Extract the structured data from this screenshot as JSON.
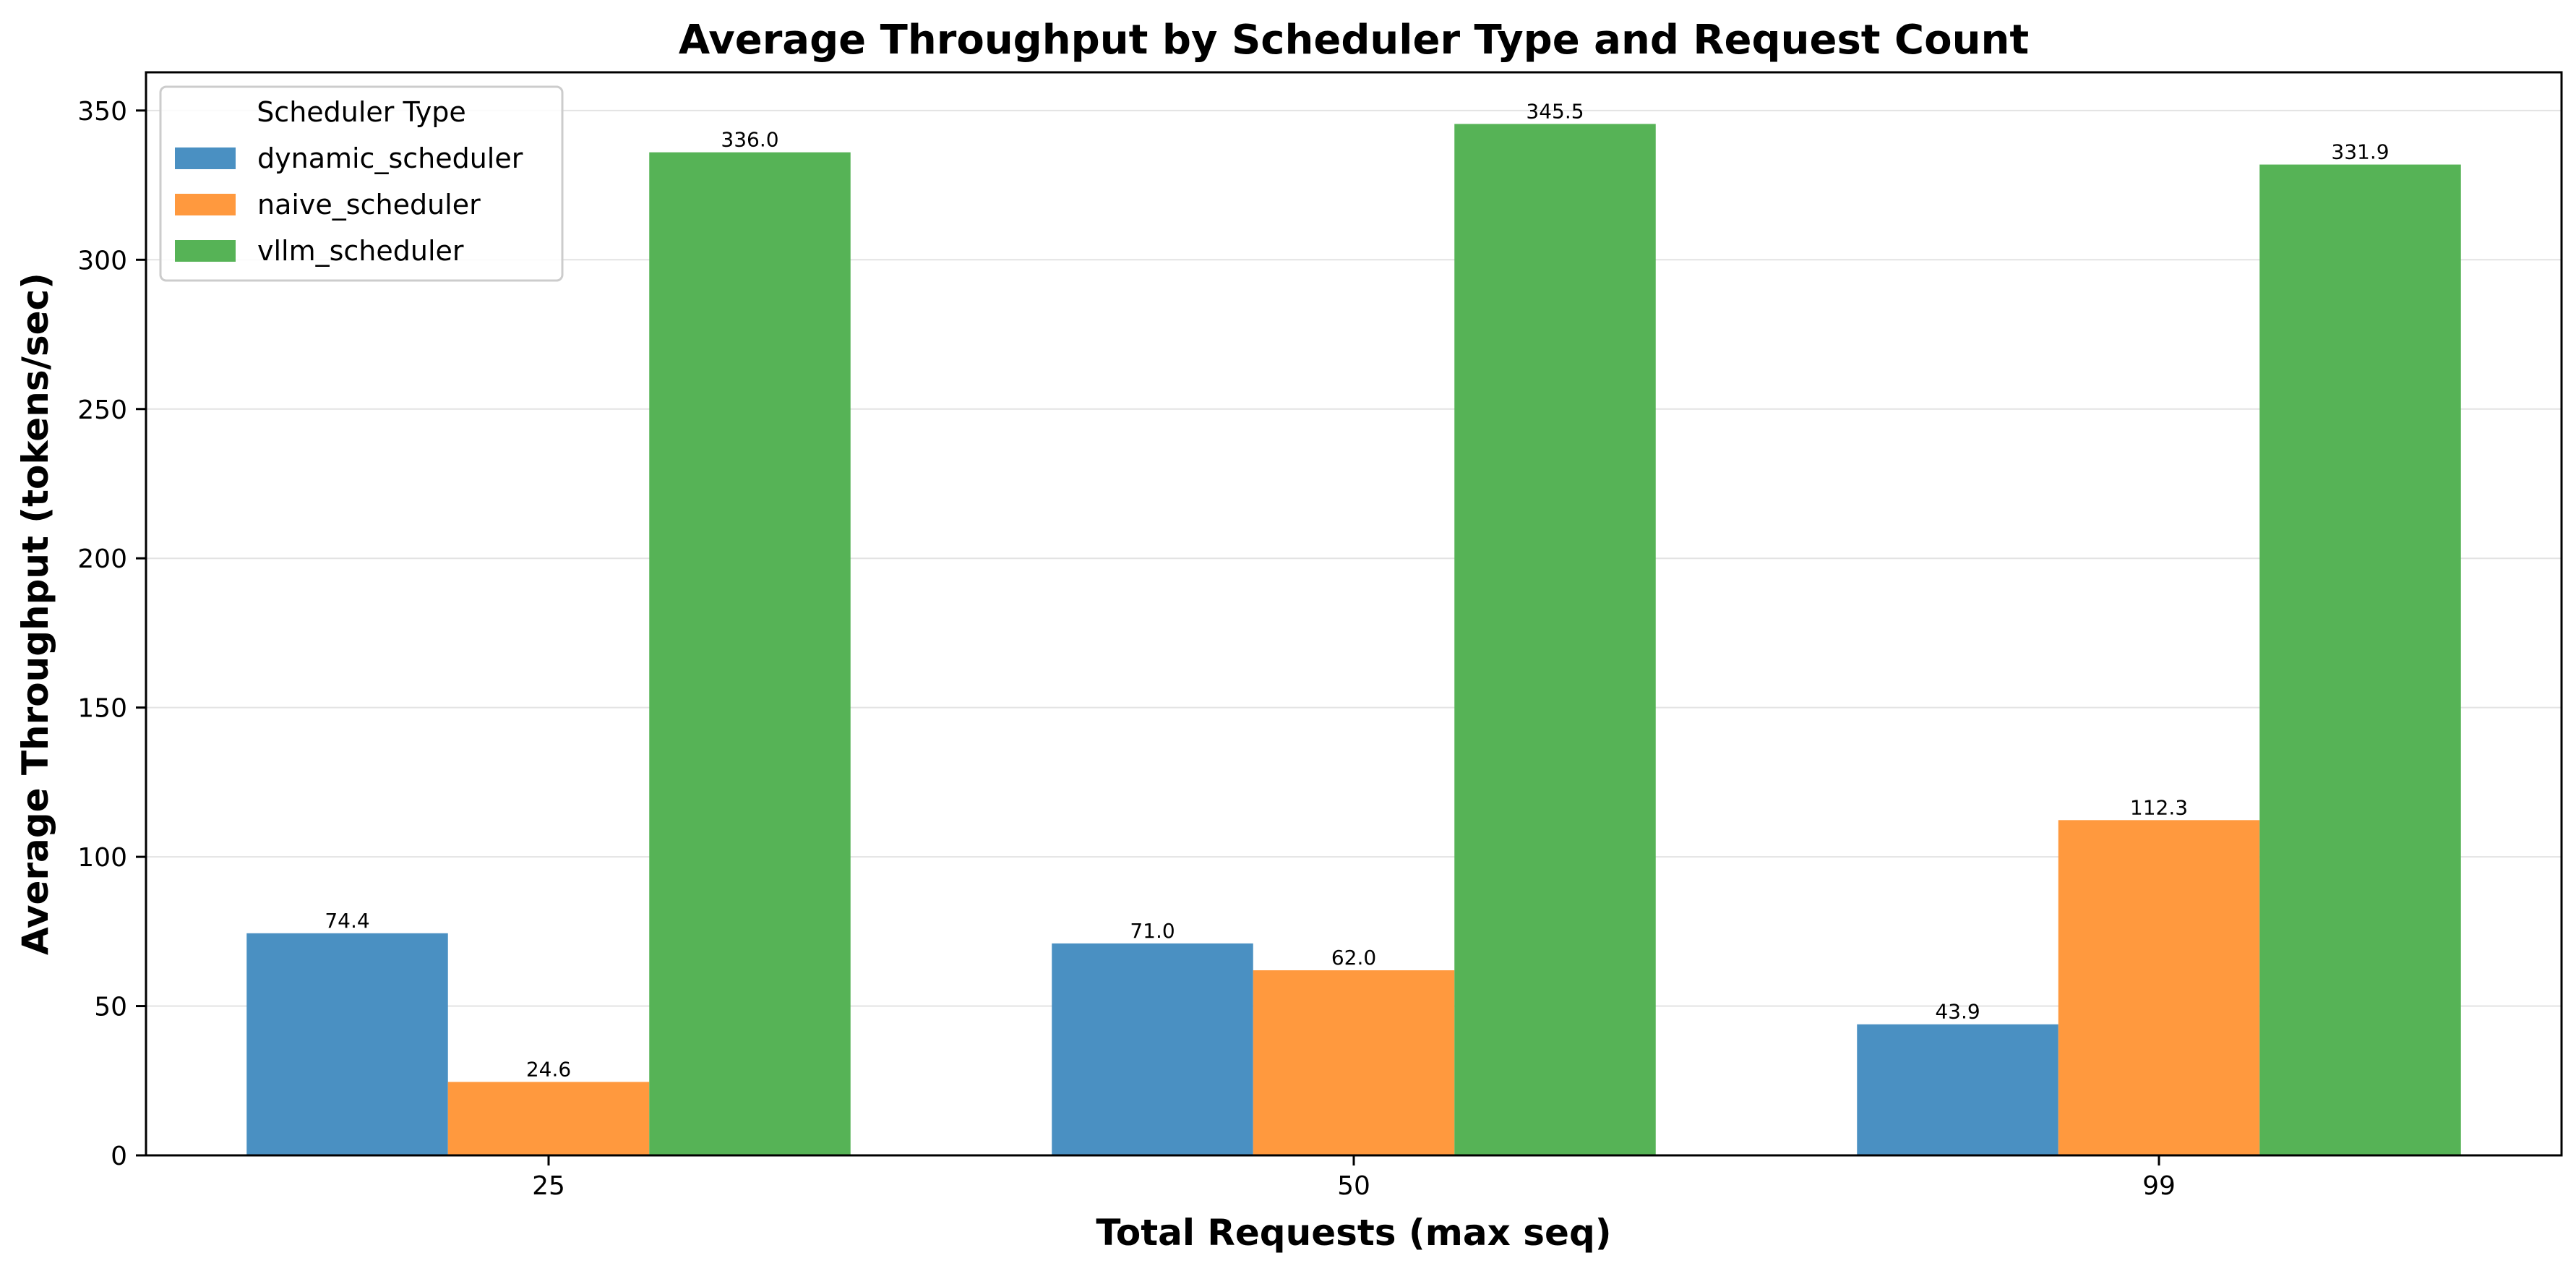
{
  "chart_data": {
    "type": "bar",
    "title": "Average Throughput by Scheduler Type and Request Count",
    "xlabel": "Total Requests (max seq)",
    "ylabel": "Average Throughput (tokens/sec)",
    "categories": [
      "25",
      "50",
      "99"
    ],
    "series": [
      {
        "name": "dynamic_scheduler",
        "color": "#4a90c2",
        "values": [
          74.4,
          71.0,
          43.9
        ],
        "labels": [
          "74.4",
          "71.0",
          "43.9"
        ]
      },
      {
        "name": "naive_scheduler",
        "color": "#ff993e",
        "values": [
          24.6,
          62.0,
          112.3
        ],
        "labels": [
          "24.6",
          "62.0",
          "112.3"
        ]
      },
      {
        "name": "vllm_scheduler",
        "color": "#56b356",
        "values": [
          336.0,
          345.5,
          331.9
        ],
        "labels": [
          "336.0",
          "345.5",
          "331.9"
        ]
      }
    ],
    "ylim": [
      0,
      362.8
    ],
    "yticks": [
      0,
      50,
      100,
      150,
      200,
      250,
      300,
      350
    ],
    "ytick_labels": [
      "0",
      "50",
      "100",
      "150",
      "200",
      "250",
      "300",
      "350"
    ],
    "grid": "horizontal",
    "legend": {
      "title": "Scheduler Type",
      "position": "top-left"
    }
  }
}
